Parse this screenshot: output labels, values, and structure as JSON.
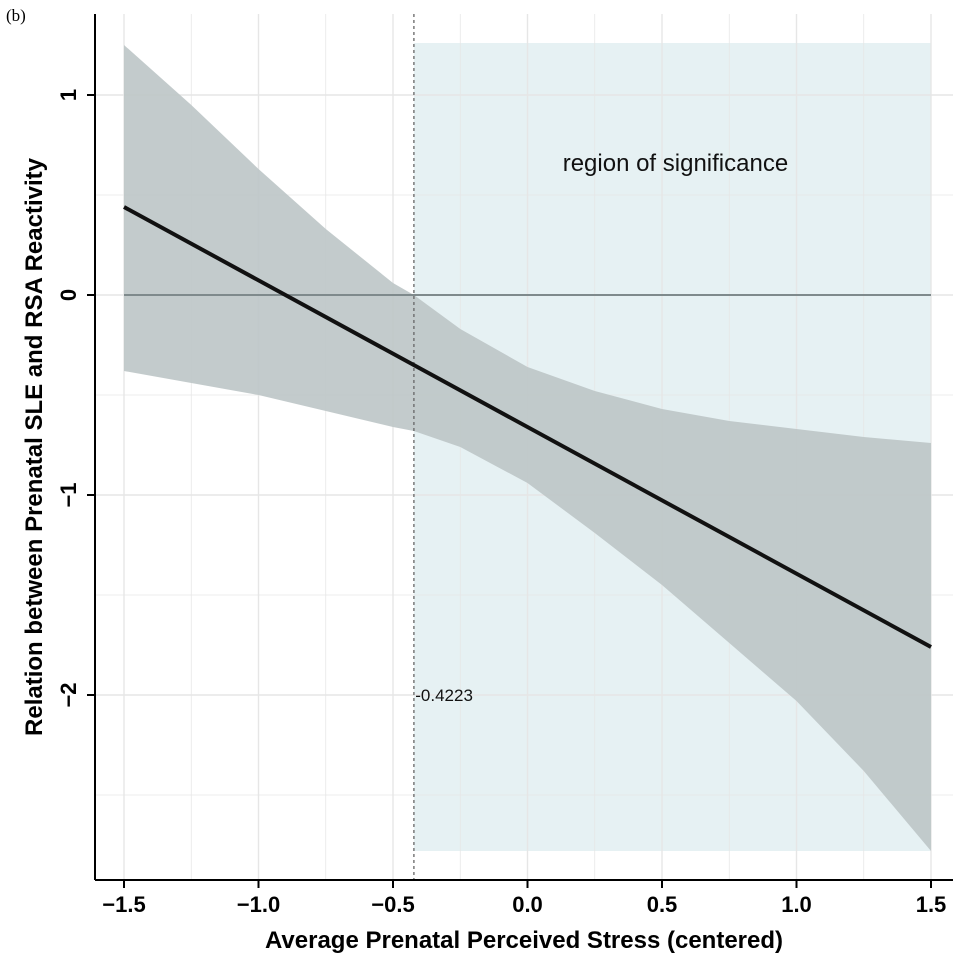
{
  "panel_label": "(b)",
  "chart_data": {
    "type": "line",
    "title": "",
    "xlabel": "Average Prenatal Perceived Stress (centered)",
    "ylabel": "Relation between Prenatal SLE and RSA Reactivity",
    "xlim": [
      -1.65,
      1.5
    ],
    "ylim": [
      -2.95,
      1.43
    ],
    "x_ticks": [
      -1.5,
      -1.0,
      -0.5,
      0.0,
      0.5,
      1.0,
      1.5
    ],
    "x_tick_labels": [
      "-1.5",
      "-1.0",
      "-0.5",
      "0.0",
      "0.5",
      "1.0",
      "1.5"
    ],
    "y_ticks": [
      -2,
      -1,
      0,
      1
    ],
    "y_tick_labels": [
      "-2",
      "-1",
      "0",
      "1"
    ],
    "grid": true,
    "series": [
      {
        "values": [
          {
            "x": -1.5,
            "y": 0.44
          },
          {
            "x": 1.5,
            "y": -1.76
          }
        ]
      }
    ],
    "confidence_band": {
      "x": [
        -1.5,
        -1.25,
        -1.0,
        -0.75,
        -0.5,
        -0.4223,
        -0.25,
        0.0,
        0.25,
        0.5,
        0.75,
        1.0,
        1.25,
        1.5
      ],
      "upper": [
        1.25,
        0.95,
        0.63,
        0.33,
        0.06,
        0.0,
        -0.17,
        -0.36,
        -0.48,
        -0.57,
        -0.63,
        -0.67,
        -0.71,
        -0.74
      ],
      "lower": [
        -0.38,
        -0.44,
        -0.5,
        -0.58,
        -0.66,
        -0.68,
        -0.76,
        -0.94,
        -1.19,
        -1.45,
        -1.74,
        -2.03,
        -2.38,
        -2.78
      ]
    },
    "reference_lines": {
      "horizontal_y": 0,
      "vertical_x": -0.4223
    },
    "region_of_significance": {
      "x_start": -0.4223,
      "x_end": 1.5,
      "y_top": 1.26,
      "y_bottom": -2.78,
      "label": "region of significance"
    },
    "annotations": [
      {
        "text": "region of significance",
        "x": 0.55,
        "y": 0.66
      },
      {
        "text": "-0.4223",
        "x": -0.38,
        "y": -2.0
      }
    ],
    "colors": {
      "line": "#111111",
      "band": "#bcc5c7",
      "region": "#e6f1f3",
      "grid": "#e6e6e6",
      "zero_line": "#7f8a8c"
    }
  }
}
